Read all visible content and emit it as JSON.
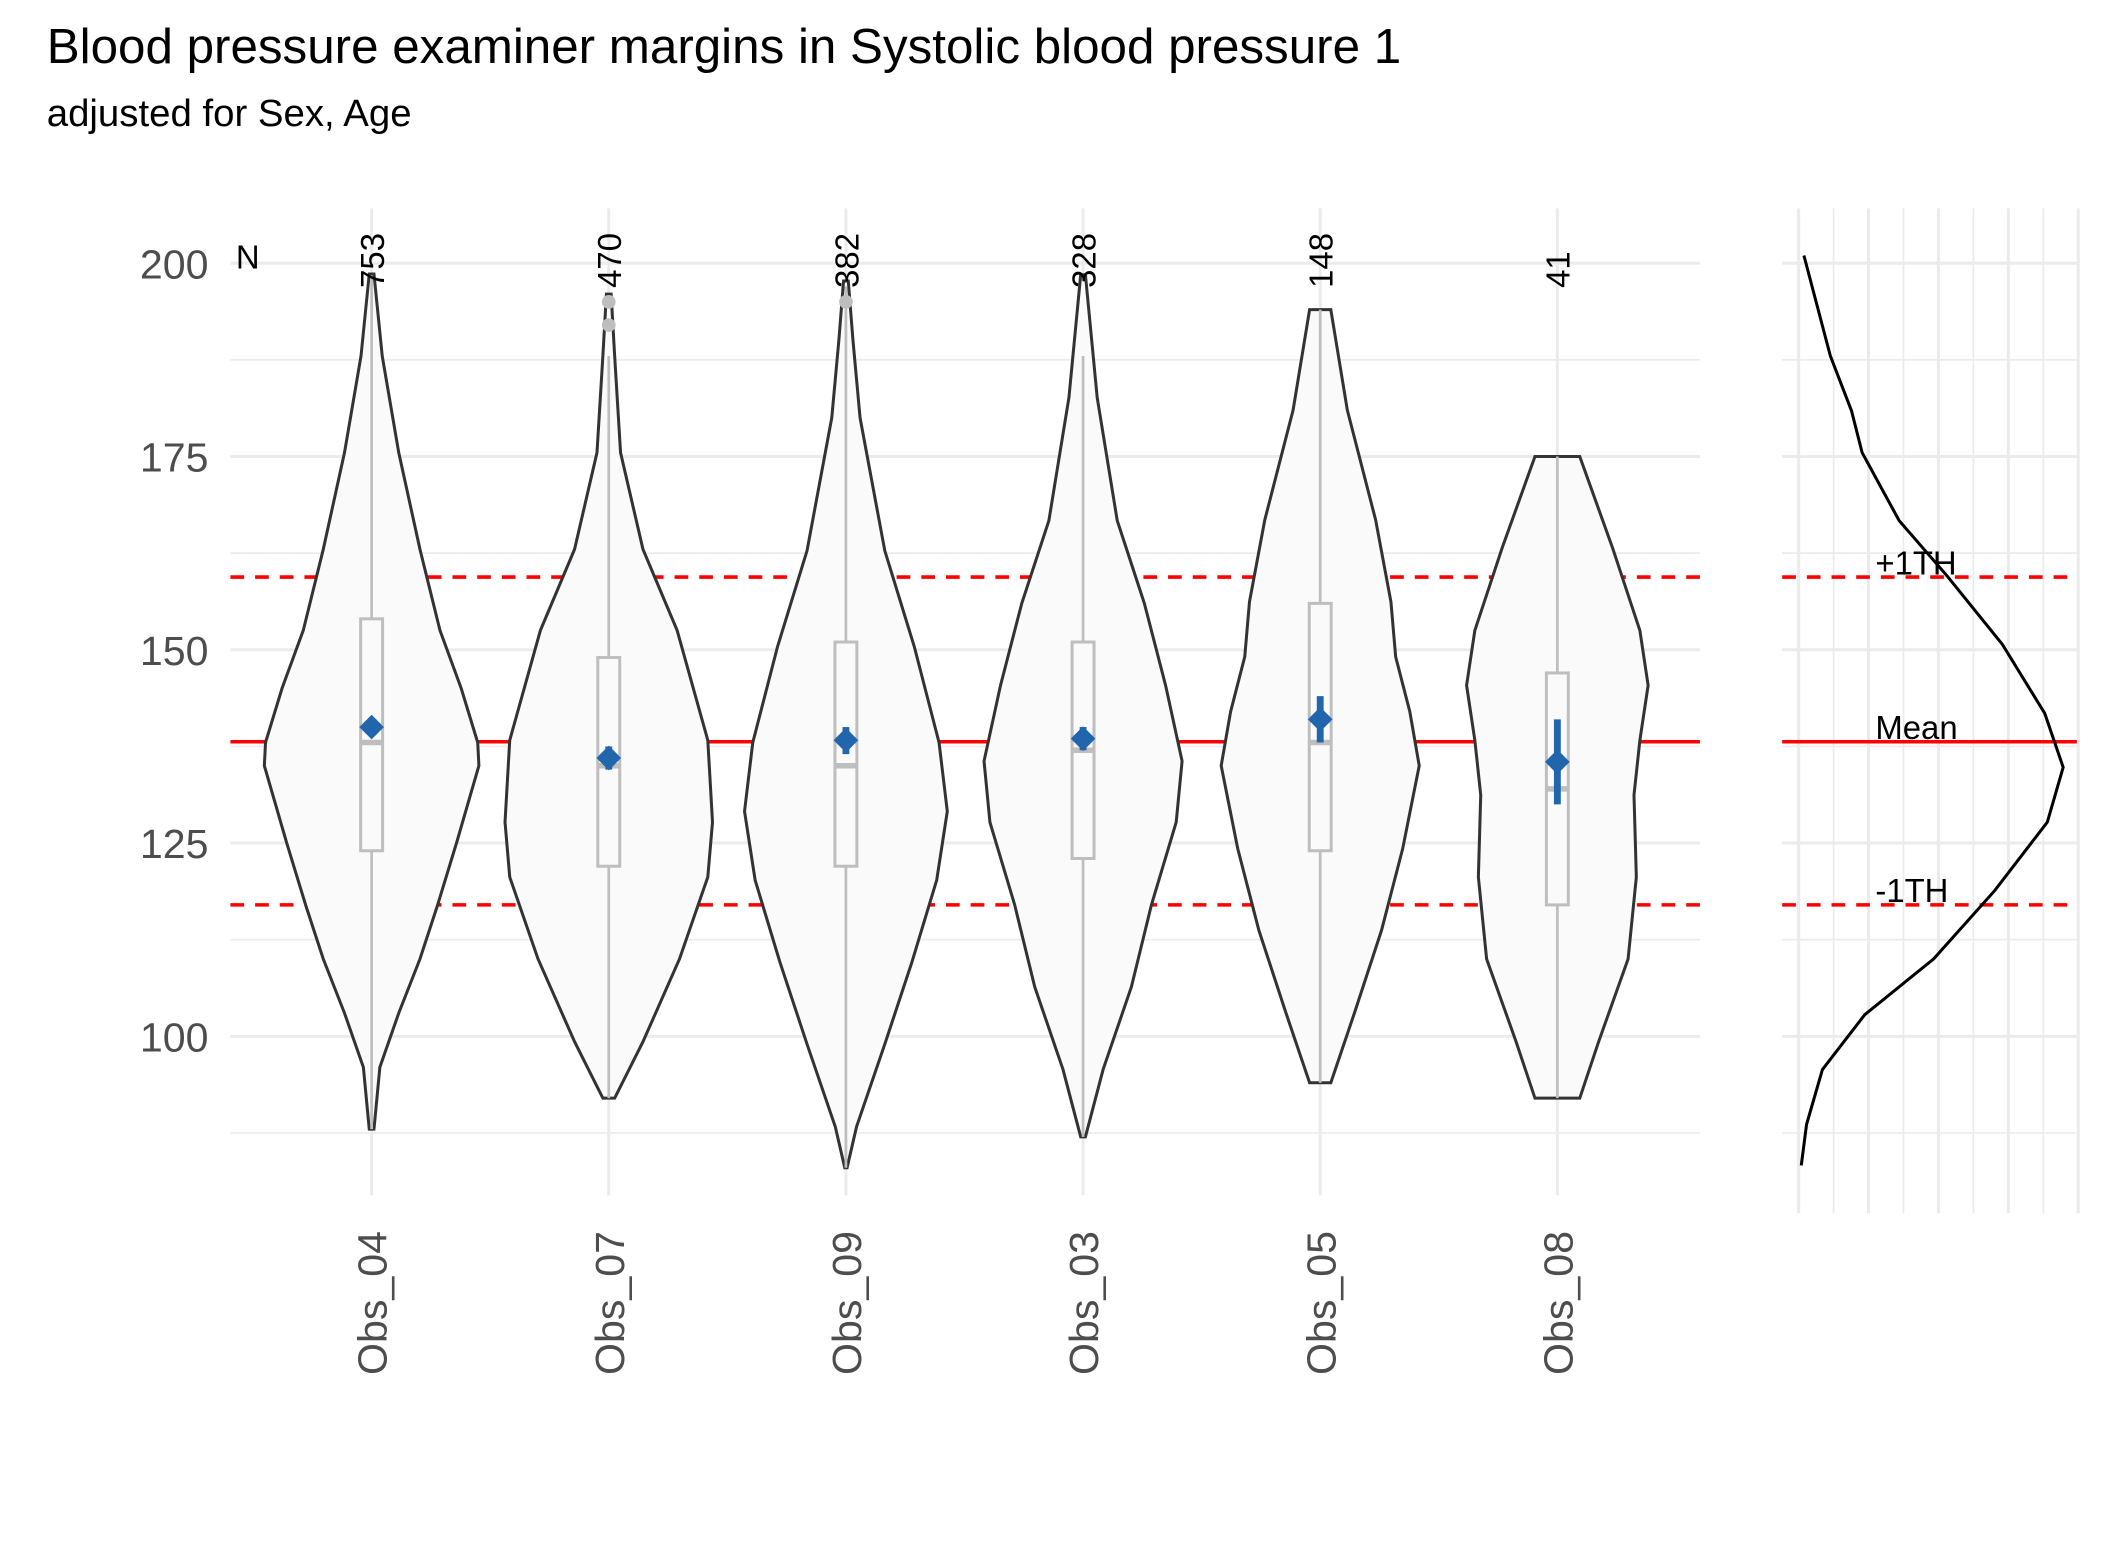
{
  "chart_data": {
    "type": "violin",
    "title": "Blood pressure examiner margins in Systolic blood pressure 1",
    "subtitle": "adjusted for Sex, Age",
    "xlabel": "",
    "ylabel": "",
    "ylim": [
      80,
      207
    ],
    "yticks": [
      100,
      125,
      150,
      175,
      200
    ],
    "grid": true,
    "n_header": "N",
    "categories": [
      "Obs_04",
      "Obs_07",
      "Obs_09",
      "Obs_03",
      "Obs_05",
      "Obs_08"
    ],
    "n": [
      "753",
      "470",
      "382",
      "328",
      "148",
      "41"
    ],
    "reference_lines": [
      {
        "label": "+1TH",
        "value": 159.4,
        "style": "dashed"
      },
      {
        "label": "Mean",
        "value": 138.1,
        "style": "solid"
      },
      {
        "label": "-1TH",
        "value": 117.0,
        "style": "dashed"
      }
    ],
    "groups": [
      {
        "name": "Obs_04",
        "q1": 124,
        "median": 138,
        "q3": 154,
        "whisker_low": 88,
        "whisker_high": 198,
        "outliers": [],
        "mean": 140,
        "ci": [
          139,
          141
        ],
        "density": [
          [
            198.6,
            0.02
          ],
          [
            188,
            0.09
          ],
          [
            175.5,
            0.23
          ],
          [
            163,
            0.41
          ],
          [
            152.5,
            0.58
          ],
          [
            145,
            0.76
          ],
          [
            138,
            0.9
          ],
          [
            135,
            0.91
          ],
          [
            125,
            0.72
          ],
          [
            117,
            0.56
          ],
          [
            110,
            0.41
          ],
          [
            103,
            0.23
          ],
          [
            96,
            0.07
          ],
          [
            88,
            0.02
          ]
        ]
      },
      {
        "name": "Obs_07",
        "q1": 122,
        "median": 135,
        "q3": 149,
        "whisker_low": 92,
        "whisker_high": 188,
        "outliers": [
          195,
          192
        ],
        "mean": 136,
        "ci": [
          134.5,
          137.5
        ],
        "density": [
          [
            196,
            0.02
          ],
          [
            188,
            0.05
          ],
          [
            175.5,
            0.1
          ],
          [
            163,
            0.29
          ],
          [
            152.5,
            0.58
          ],
          [
            138.3,
            0.84
          ],
          [
            127.7,
            0.88
          ],
          [
            120.6,
            0.84
          ],
          [
            110,
            0.6
          ],
          [
            99.3,
            0.29
          ],
          [
            92,
            0.05
          ]
        ]
      },
      {
        "name": "Obs_09",
        "q1": 122,
        "median": 135,
        "q3": 151,
        "whisker_low": 83,
        "whisker_high": 197,
        "outliers": [
          195
        ],
        "mean": 138.3,
        "ci": [
          136.5,
          140
        ],
        "density": [
          [
            197.7,
            0.02
          ],
          [
            190,
            0.06
          ],
          [
            180,
            0.12
          ],
          [
            162.8,
            0.33
          ],
          [
            150.4,
            0.58
          ],
          [
            138,
            0.79
          ],
          [
            129.1,
            0.86
          ],
          [
            120.2,
            0.77
          ],
          [
            109.6,
            0.56
          ],
          [
            99,
            0.33
          ],
          [
            88.3,
            0.09
          ],
          [
            83,
            0.01
          ]
        ]
      },
      {
        "name": "Obs_03",
        "q1": 123,
        "median": 137,
        "q3": 151,
        "whisker_low": 87,
        "whisker_high": 188,
        "outliers": [],
        "mean": 138.5,
        "ci": [
          137,
          140
        ],
        "density": [
          [
            198.5,
            0.02
          ],
          [
            182.6,
            0.12
          ],
          [
            166.7,
            0.29
          ],
          [
            156,
            0.52
          ],
          [
            145.4,
            0.7
          ],
          [
            135.6,
            0.84
          ],
          [
            127.7,
            0.79
          ],
          [
            117,
            0.58
          ],
          [
            106.4,
            0.41
          ],
          [
            95.7,
            0.17
          ],
          [
            87,
            0.02
          ]
        ]
      },
      {
        "name": "Obs_05",
        "q1": 124,
        "median": 138,
        "q3": 156,
        "whisker_low": 94,
        "whisker_high": 194,
        "outliers": [],
        "mean": 141,
        "ci": [
          138,
          144
        ],
        "density": [
          [
            194,
            0.09
          ],
          [
            181,
            0.23
          ],
          [
            166.8,
            0.47
          ],
          [
            156.2,
            0.6
          ],
          [
            149.1,
            0.64
          ],
          [
            142,
            0.76
          ],
          [
            135,
            0.84
          ],
          [
            124.3,
            0.7
          ],
          [
            113.7,
            0.52
          ],
          [
            103,
            0.29
          ],
          [
            94,
            0.09
          ]
        ]
      },
      {
        "name": "Obs_08",
        "q1": 117,
        "median": 132,
        "q3": 147,
        "whisker_low": 92,
        "whisker_high": 175,
        "outliers": [],
        "mean": 135.5,
        "ci": [
          130,
          141
        ],
        "density": [
          [
            175,
            0.19
          ],
          [
            163.1,
            0.47
          ],
          [
            152.5,
            0.7
          ],
          [
            145.4,
            0.77
          ],
          [
            138.3,
            0.7
          ],
          [
            131.2,
            0.65
          ],
          [
            120.6,
            0.67
          ],
          [
            110,
            0.6
          ],
          [
            99.3,
            0.35
          ],
          [
            92,
            0.19
          ]
        ]
      }
    ],
    "marginal_density": {
      "series": [
        [
          201,
          0.02
        ],
        [
          188,
          0.12
        ],
        [
          180.9,
          0.2
        ],
        [
          175.5,
          0.24
        ],
        [
          166.7,
          0.38
        ],
        [
          159.6,
          0.56
        ],
        [
          150.7,
          0.77
        ],
        [
          141.8,
          0.93
        ],
        [
          134.8,
          1.0
        ],
        [
          127.7,
          0.94
        ],
        [
          118.8,
          0.74
        ],
        [
          110,
          0.51
        ],
        [
          102.8,
          0.25
        ],
        [
          95.7,
          0.09
        ],
        [
          88.6,
          0.03
        ],
        [
          83.3,
          0.01
        ]
      ]
    },
    "colors": {
      "violin_fill": "#fafafa",
      "violin_stroke": "#333333",
      "box": "#bebebe",
      "mean": "#2166ac",
      "reference": "#ff0000",
      "grid": "#ebebeb"
    }
  }
}
